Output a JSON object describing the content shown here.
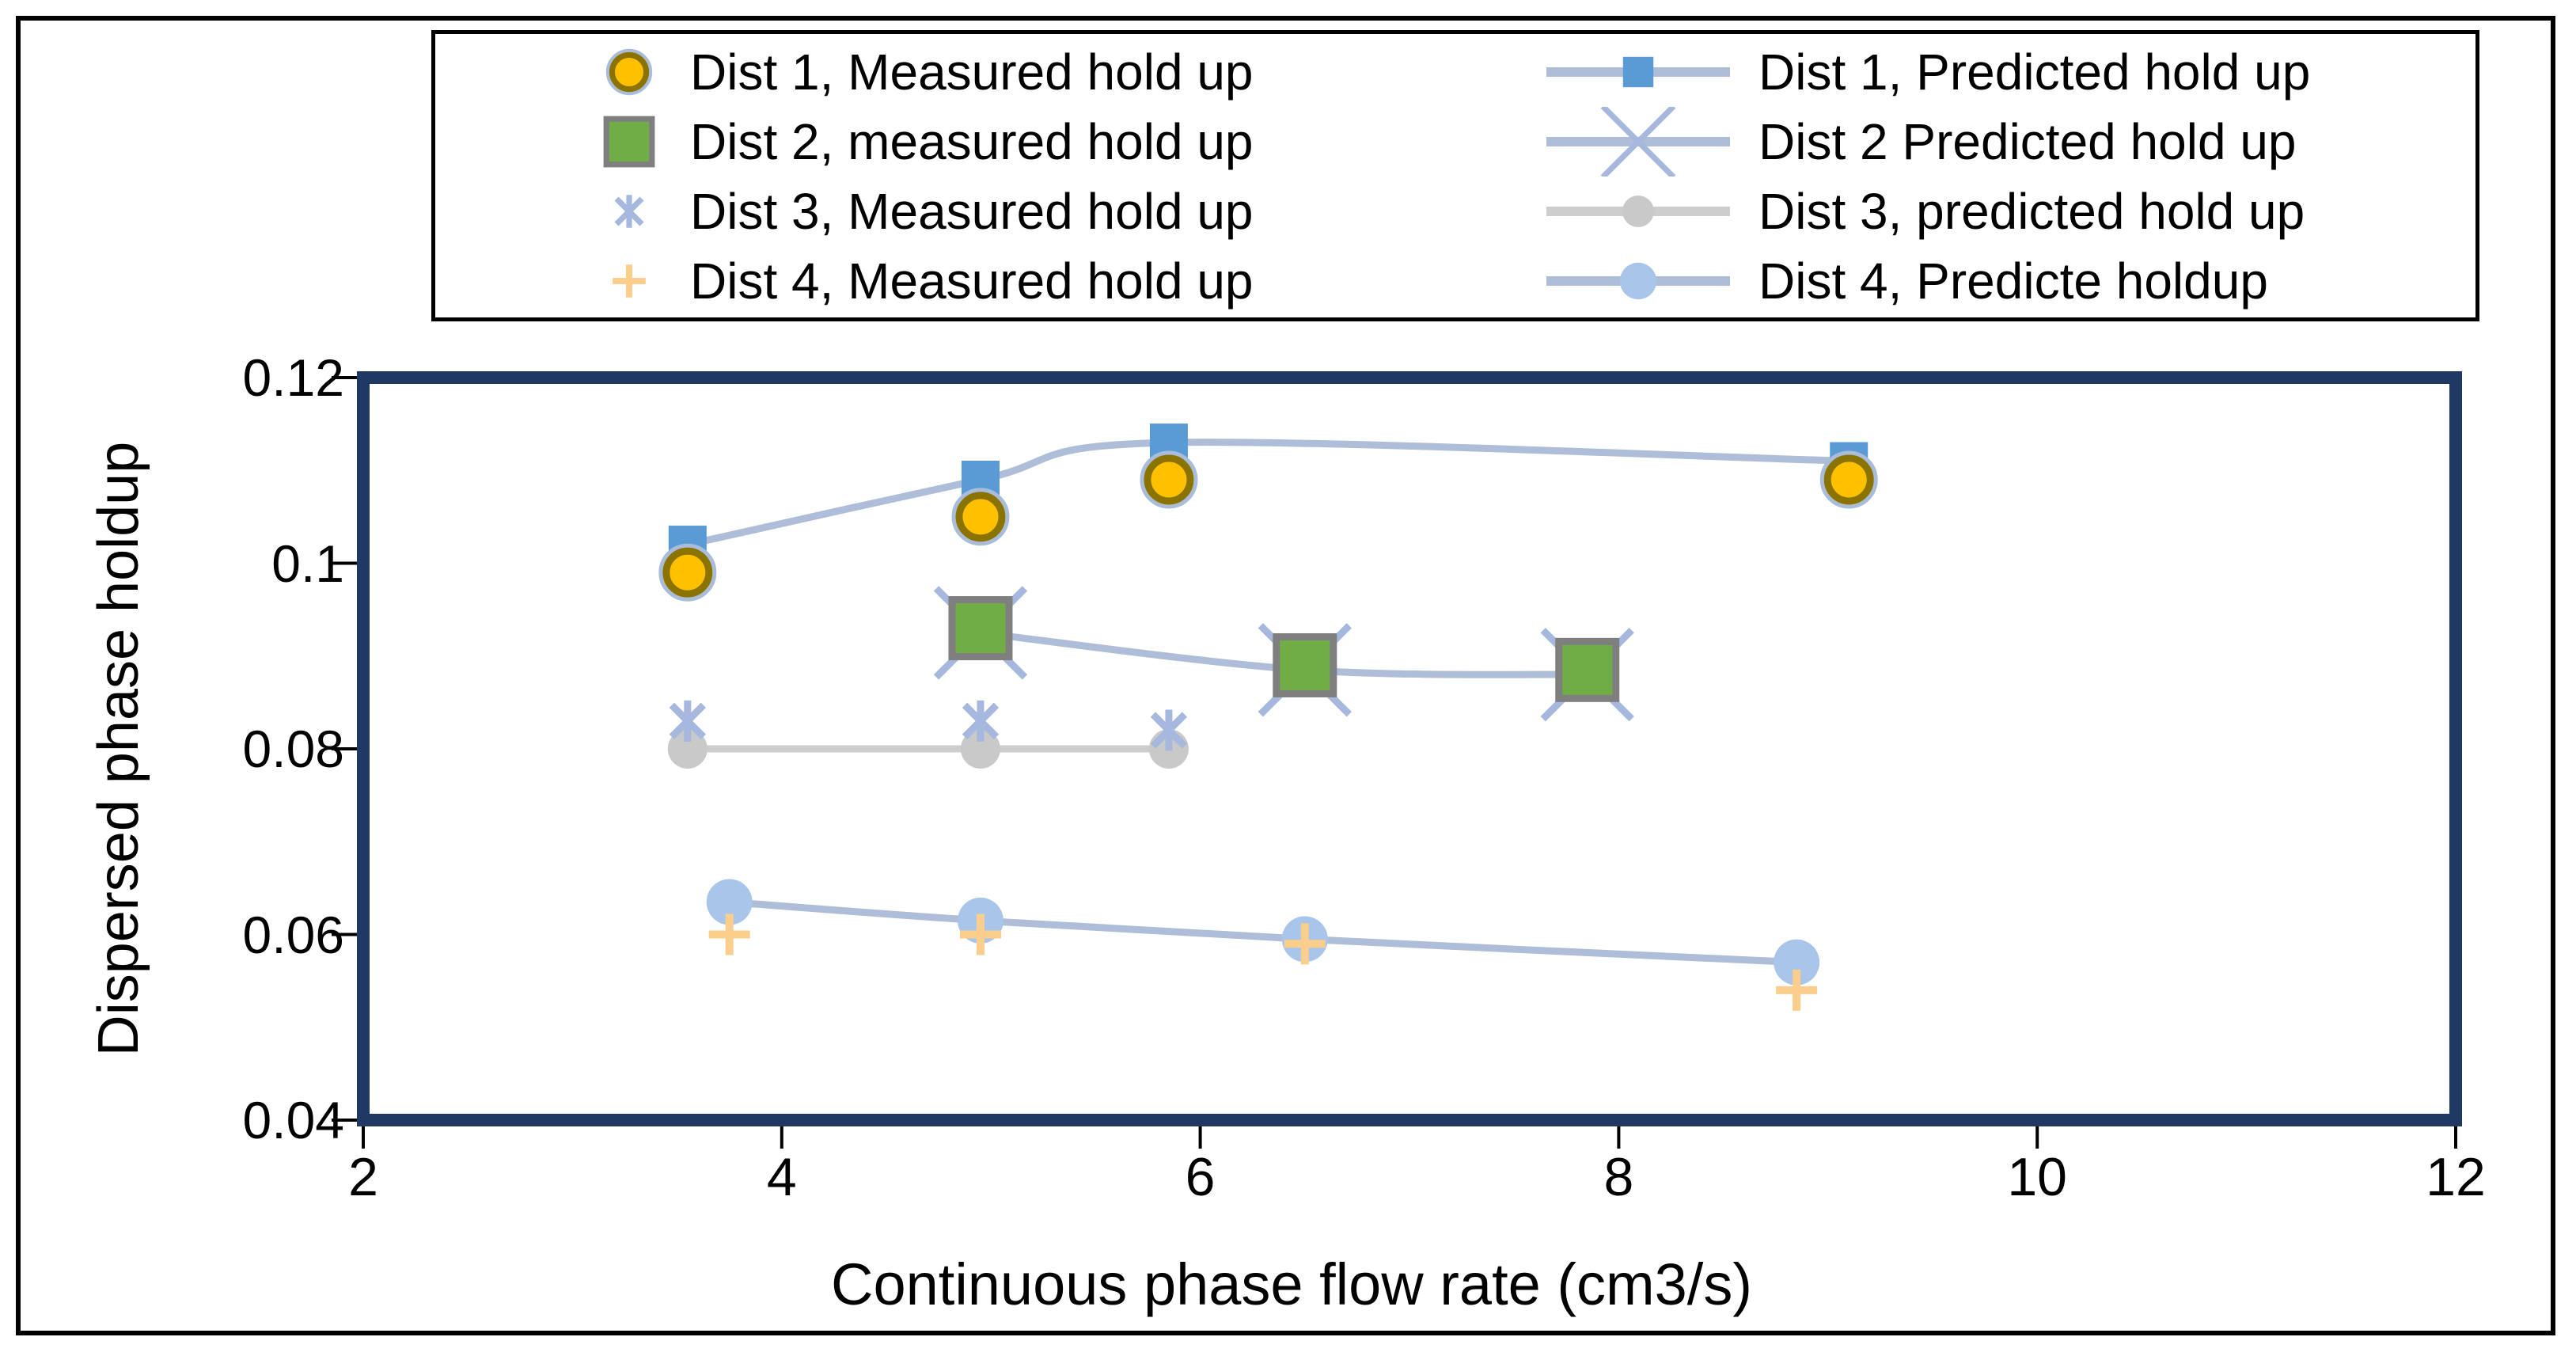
{
  "legend": {
    "items": [
      {
        "label": "Dist 1, Measured hold up",
        "marker": "circle-orange",
        "line": false
      },
      {
        "label": "Dist 2, measured hold up",
        "marker": "square-green",
        "line": false
      },
      {
        "label": "Dist 3, Measured hold up",
        "marker": "asterisk-blue",
        "line": false
      },
      {
        "label": "Dist 4, Measured hold up",
        "marker": "plus-orange",
        "line": false
      },
      {
        "label": "Dist 1, Predicted hold up",
        "marker": "square-blue",
        "line": true,
        "line_color": "#AEBDD8"
      },
      {
        "label": "Dist 2 Predicted hold up",
        "marker": "x-blue",
        "line": true,
        "line_color": "#AEBDD8"
      },
      {
        "label": "Dist 3, predicted hold up",
        "marker": "circle-gray",
        "line": true,
        "line_color": "#CDCDCD"
      },
      {
        "label": "Dist 4, Predicte holdup",
        "marker": "circle-lightblue",
        "line": true,
        "line_color": "#AEBDD8"
      }
    ]
  },
  "chart_data": {
    "type": "line",
    "title": "",
    "xlabel": "Continuous phase flow rate (cm3/s)",
    "ylabel": "Dispersed phase holdup",
    "xlim": [
      2,
      12
    ],
    "ylim": [
      0.04,
      0.12
    ],
    "grid": false,
    "legend_position": "top",
    "x_ticks": [
      {
        "value": 2,
        "label": "2"
      },
      {
        "value": 4,
        "label": "4"
      },
      {
        "value": 6,
        "label": "6"
      },
      {
        "value": 8,
        "label": "8"
      },
      {
        "value": 10,
        "label": "10"
      },
      {
        "value": 12,
        "label": "12"
      }
    ],
    "y_ticks": [
      {
        "value": 0.04,
        "label": "0.04"
      },
      {
        "value": 0.06,
        "label": "0.06"
      },
      {
        "value": 0.08,
        "label": "0.08"
      },
      {
        "value": 0.1,
        "label": "0.1"
      },
      {
        "value": 0.12,
        "label": "0.12"
      }
    ],
    "series": [
      {
        "name": "Dist 1, Measured hold up",
        "marker": "circle-orange",
        "line": false,
        "x": [
          3.55,
          4.95,
          5.85,
          9.1
        ],
        "y": [
          0.099,
          0.105,
          0.109,
          0.109
        ]
      },
      {
        "name": "Dist 1, Predicted hold up",
        "marker": "square-blue",
        "line": true,
        "smooth": true,
        "line_color": "#AEBDD8",
        "x": [
          3.55,
          4.95,
          5.85,
          9.1
        ],
        "y": [
          0.102,
          0.109,
          0.113,
          0.111
        ]
      },
      {
        "name": "Dist 2, measured hold up",
        "marker": "square-green",
        "line": false,
        "x": [
          4.95,
          6.5,
          7.85
        ],
        "y": [
          0.093,
          0.089,
          0.0885
        ]
      },
      {
        "name": "Dist 2 Predicted hold up",
        "marker": "x-blue",
        "line": true,
        "smooth": true,
        "line_color": "#AEBDD8",
        "x": [
          4.95,
          6.5,
          7.85
        ],
        "y": [
          0.0925,
          0.0885,
          0.088
        ]
      },
      {
        "name": "Dist 3, Measured hold up",
        "marker": "asterisk-blue",
        "line": false,
        "x": [
          3.55,
          4.95,
          5.85
        ],
        "y": [
          0.083,
          0.083,
          0.082
        ]
      },
      {
        "name": "Dist 3, predicted hold up",
        "marker": "circle-gray",
        "line": true,
        "smooth": false,
        "line_color": "#CDCDCD",
        "x": [
          3.55,
          4.95,
          5.85
        ],
        "y": [
          0.08,
          0.08,
          0.08
        ]
      },
      {
        "name": "Dist 4, Measured hold up",
        "marker": "plus-orange",
        "line": false,
        "x": [
          3.75,
          4.95,
          6.5,
          8.85
        ],
        "y": [
          0.06,
          0.06,
          0.059,
          0.054
        ]
      },
      {
        "name": "Dist 4, Predicte holdup",
        "marker": "circle-lightblue",
        "line": true,
        "smooth": true,
        "line_color": "#AEBDD8",
        "x": [
          3.75,
          4.95,
          6.5,
          8.85
        ],
        "y": [
          0.0635,
          0.0615,
          0.0595,
          0.057
        ]
      }
    ],
    "marker_draw_order": [
      3,
      1,
      0,
      2,
      5,
      4,
      7,
      6
    ],
    "marker_styles": {
      "circle-orange": {
        "shape": "circle",
        "fill": "#FFC000",
        "stroke": "#8B7300",
        "halo": "#A9BCD9"
      },
      "square-blue": {
        "shape": "square",
        "fill": "#5B9BD5"
      },
      "square-green": {
        "shape": "square",
        "fill": "#70AD47",
        "stroke": "#7F7F7F"
      },
      "x-blue": {
        "shape": "x",
        "stroke": "#A6B8DE"
      },
      "asterisk-blue": {
        "shape": "asterisk",
        "stroke": "#A6B8DE"
      },
      "plus-orange": {
        "shape": "plus",
        "stroke": "#FBCE8D"
      },
      "circle-gray": {
        "shape": "circle",
        "fill": "#C9C9C9"
      },
      "circle-lightblue": {
        "shape": "circle",
        "fill": "#A9C6EA"
      }
    },
    "frame_color": "#1F3864",
    "tick_color": "#000000"
  }
}
